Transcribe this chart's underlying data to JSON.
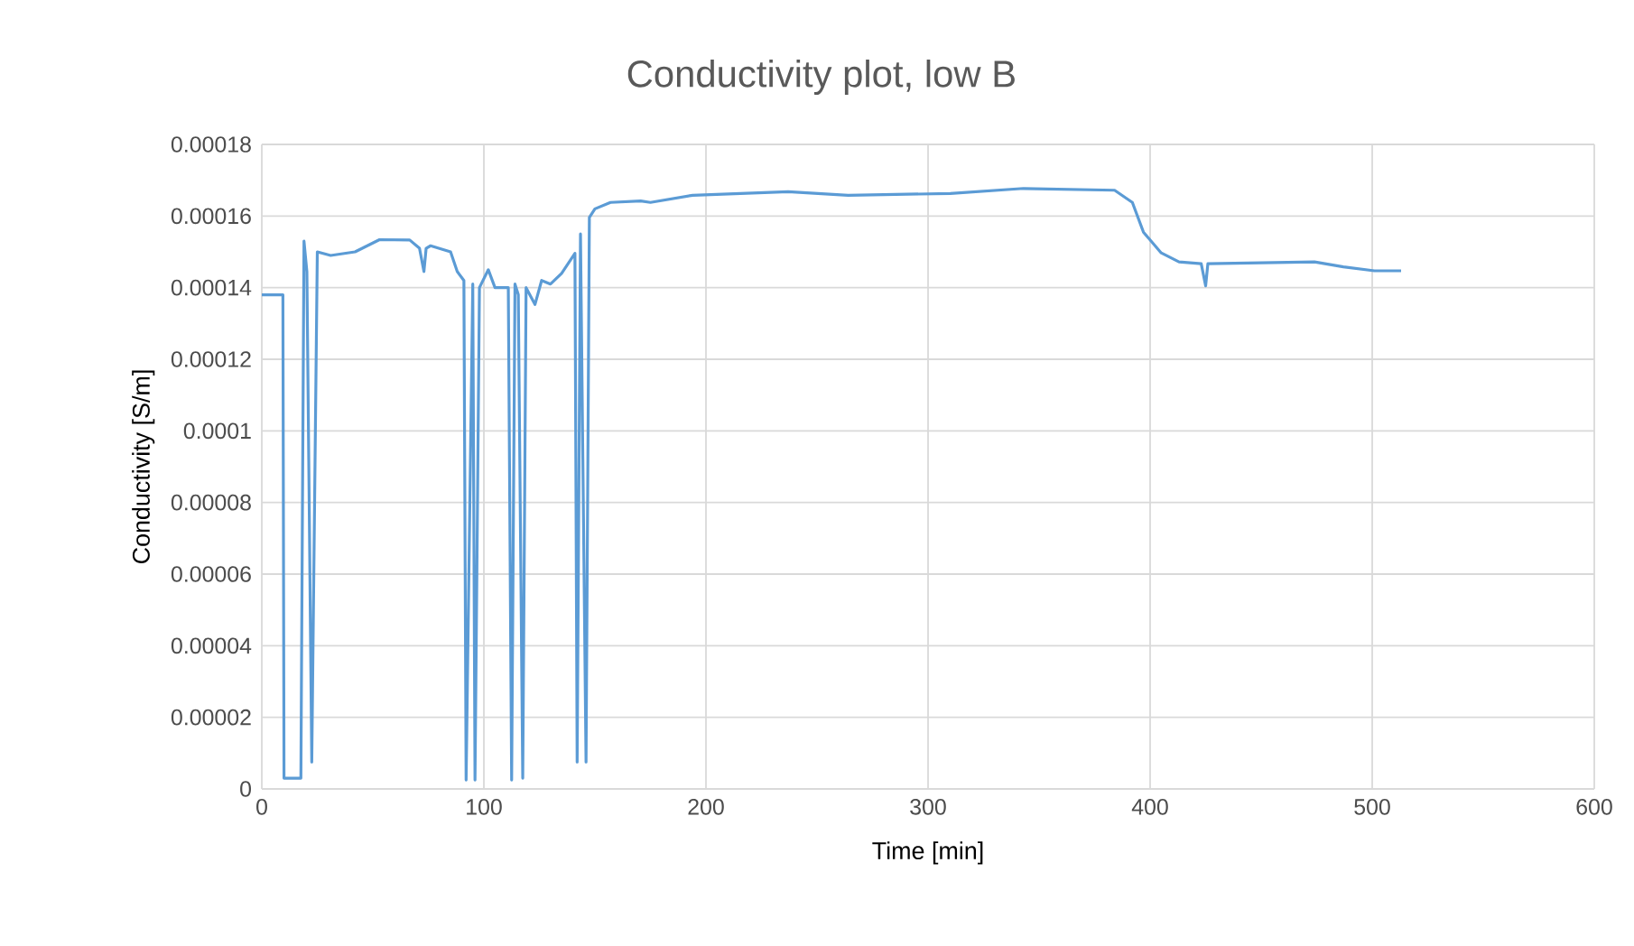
{
  "chart_data": {
    "type": "line",
    "title": "Conductivity plot, low B",
    "xlabel": "Time [min]",
    "ylabel": "Conductivity [S/m]",
    "series": [
      {
        "color": "#5b9bd5",
        "x": [
          0,
          9.5,
          10,
          17.6,
          19,
          20.3,
          22.5,
          25,
          31,
          42,
          53,
          66.6,
          71,
          73,
          74,
          76,
          85,
          88,
          91,
          92,
          95,
          96,
          98,
          102,
          105,
          111,
          112.5,
          114,
          115.5,
          117.5,
          119,
          123,
          126,
          130,
          135,
          141,
          142,
          143.5,
          146,
          147.5,
          150,
          157,
          170.6,
          175,
          194,
          237,
          264,
          310,
          343,
          384,
          392,
          397,
          405,
          413,
          423,
          425,
          426,
          474,
          487,
          501,
          513
        ],
        "values": [
          0.000138,
          0.000138,
          3e-06,
          3e-06,
          0.000153,
          0.0001445,
          7.5e-06,
          0.00015,
          0.000149,
          0.00015,
          0.0001534,
          0.0001533,
          0.000151,
          0.0001445,
          0.000151,
          0.0001517,
          0.00015,
          0.0001445,
          0.000142,
          2.5e-06,
          0.000141,
          2.5e-06,
          0.00014,
          0.000145,
          0.00014,
          0.00014,
          2.5e-06,
          0.000141,
          0.000138,
          3e-06,
          0.00014,
          0.0001353,
          0.000142,
          0.000141,
          0.000144,
          0.0001496,
          7.5e-06,
          0.000155,
          7.5e-06,
          0.0001596,
          0.000162,
          0.0001638,
          0.0001642,
          0.0001638,
          0.0001658,
          0.0001668,
          0.0001658,
          0.0001663,
          0.0001677,
          0.0001672,
          0.0001638,
          0.0001555,
          0.0001497,
          0.0001472,
          0.0001467,
          0.0001405,
          0.0001467,
          0.0001472,
          0.0001458,
          0.0001447,
          0.0001447
        ]
      }
    ],
    "xlim": [
      0,
      600
    ],
    "xticks": [
      0,
      100,
      200,
      300,
      400,
      500,
      600
    ],
    "ylim": [
      0,
      0.00018
    ],
    "yticks": [
      {
        "value": 0,
        "label": "0"
      },
      {
        "value": 2e-05,
        "label": "0.00002"
      },
      {
        "value": 4e-05,
        "label": "0.00004"
      },
      {
        "value": 6e-05,
        "label": "0.00006"
      },
      {
        "value": 8e-05,
        "label": "0.00008"
      },
      {
        "value": 0.0001,
        "label": "0.0001"
      },
      {
        "value": 0.00012,
        "label": "0.00012"
      },
      {
        "value": 0.00014,
        "label": "0.00014"
      },
      {
        "value": 0.00016,
        "label": "0.00016"
      },
      {
        "value": 0.00018,
        "label": "0.00018"
      }
    ],
    "grid": true,
    "marker": "none",
    "line_style": "solid"
  }
}
